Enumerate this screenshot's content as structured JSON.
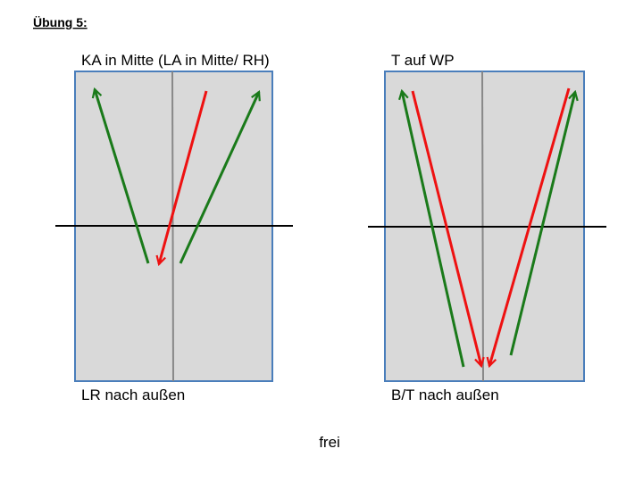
{
  "header": {
    "title": "Übung 5:"
  },
  "panels": [
    {
      "title": "KA in Mitte (LA in Mitte/ RH)",
      "caption": "LR nach außen"
    },
    {
      "title": "T auf WP",
      "caption": "B/T nach außen"
    }
  ],
  "footer": "frei"
}
